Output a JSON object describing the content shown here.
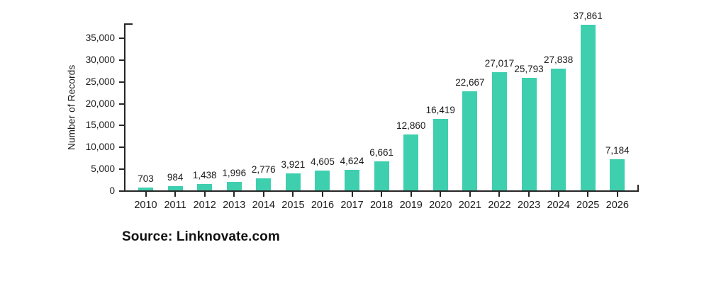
{
  "source": {
    "label": "Source: Linknovate.com"
  },
  "chart_data": {
    "type": "bar",
    "title": "",
    "xlabel": "",
    "ylabel": "Number of Records",
    "categories": [
      "2010",
      "2011",
      "2012",
      "2013",
      "2014",
      "2015",
      "2016",
      "2017",
      "2018",
      "2019",
      "2020",
      "2021",
      "2022",
      "2023",
      "2024",
      "2025",
      "2026"
    ],
    "values": [
      703,
      984,
      1438,
      1996,
      2776,
      3921,
      4605,
      4624,
      6661,
      12860,
      16419,
      22667,
      27017,
      25793,
      27838,
      37861,
      7184
    ],
    "value_labels": [
      "703",
      "984",
      "1,438",
      "1,996",
      "2,776",
      "3,921",
      "4,605",
      "4,624",
      "6,661",
      "12,860",
      "16,419",
      "22,667",
      "27,017",
      "25,793",
      "27,838",
      "37,861",
      "7,184"
    ],
    "y_ticks": [
      0,
      5000,
      10000,
      15000,
      20000,
      25000,
      30000,
      35000
    ],
    "y_tick_labels": [
      "0",
      "5,000",
      "10,000",
      "15,000",
      "20,000",
      "25,000",
      "30,000",
      "35,000"
    ],
    "ylim": [
      0,
      38500
    ],
    "grid": false,
    "legend": false,
    "bar_color": "#3ECFAE",
    "axis_color": "#262626",
    "text_color": "#1a1a1a",
    "background_color": "#ffffff"
  }
}
